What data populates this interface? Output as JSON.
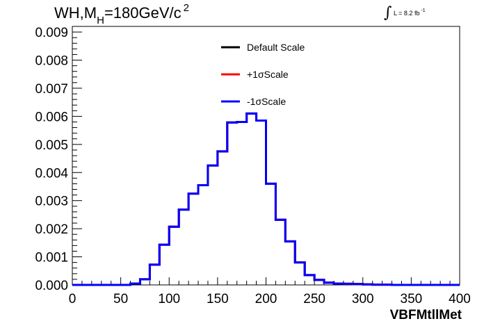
{
  "title_parts": {
    "main": "WH,M",
    "sub": "H",
    "rest": "=180GeV/c",
    "sup": "2"
  },
  "lumi_parts": {
    "integral": "∫",
    "text": "L = 8.2 fb",
    "sup": "-1"
  },
  "chart_data": {
    "type": "line",
    "title": "WH,MH=180GeV/c2",
    "xlabel": "VBFMtllMet",
    "ylabel": "",
    "xlim": [
      0,
      400
    ],
    "ylim": [
      0,
      0.0092
    ],
    "x_ticks": [
      0,
      50,
      100,
      150,
      200,
      250,
      300,
      350,
      400
    ],
    "y_ticks": [
      0.0,
      0.001,
      0.002,
      0.003,
      0.004,
      0.005,
      0.006,
      0.007,
      0.008,
      0.009
    ],
    "y_tick_labels": [
      "0.000",
      "0.001",
      "0.002",
      "0.003",
      "0.004",
      "0.005",
      "0.006",
      "0.007",
      "0.008",
      "0.009"
    ],
    "bin_width": 10,
    "bin_edges_start": 0,
    "legend": [
      "Default Scale",
      "+1σScale",
      "-1σScale"
    ],
    "legend_position": "top-center",
    "grid": false,
    "series": [
      {
        "name": "Default Scale",
        "color": "#000000",
        "values": [
          0,
          0,
          0,
          0,
          0,
          0,
          5e-05,
          0.0002,
          0.00072,
          0.00143,
          0.00207,
          0.00268,
          0.00325,
          0.00355,
          0.00425,
          0.00475,
          0.00578,
          0.0058,
          0.0061,
          0.00585,
          0.0036,
          0.00232,
          0.00155,
          0.0008,
          0.00035,
          0.00018,
          8e-05,
          5e-05,
          4e-05,
          3e-05,
          2e-05,
          1e-05,
          1e-05,
          0,
          0,
          0,
          0,
          0,
          0,
          0
        ]
      },
      {
        "name": "+1σScale",
        "color": "#ff0000",
        "values": [
          0,
          0,
          0,
          0,
          0,
          0,
          5e-05,
          0.0002,
          0.00072,
          0.00143,
          0.00207,
          0.00268,
          0.00325,
          0.00355,
          0.00425,
          0.00475,
          0.00578,
          0.0058,
          0.0061,
          0.00585,
          0.0036,
          0.00232,
          0.00155,
          0.0008,
          0.00035,
          0.00018,
          8e-05,
          5e-05,
          4e-05,
          3e-05,
          2e-05,
          1e-05,
          1e-05,
          0,
          0,
          0,
          0,
          0,
          0,
          0
        ]
      },
      {
        "name": "-1σScale",
        "color": "#0000ff",
        "values": [
          0,
          0,
          0,
          0,
          0,
          0,
          5e-05,
          0.0002,
          0.00072,
          0.00143,
          0.00207,
          0.00268,
          0.00325,
          0.00355,
          0.00425,
          0.00475,
          0.00578,
          0.0058,
          0.0061,
          0.00585,
          0.0036,
          0.00232,
          0.00155,
          0.0008,
          0.00035,
          0.00018,
          8e-05,
          5e-05,
          4e-05,
          3e-05,
          2e-05,
          1e-05,
          1e-05,
          0,
          0,
          0,
          0,
          0,
          0,
          0
        ]
      }
    ]
  }
}
